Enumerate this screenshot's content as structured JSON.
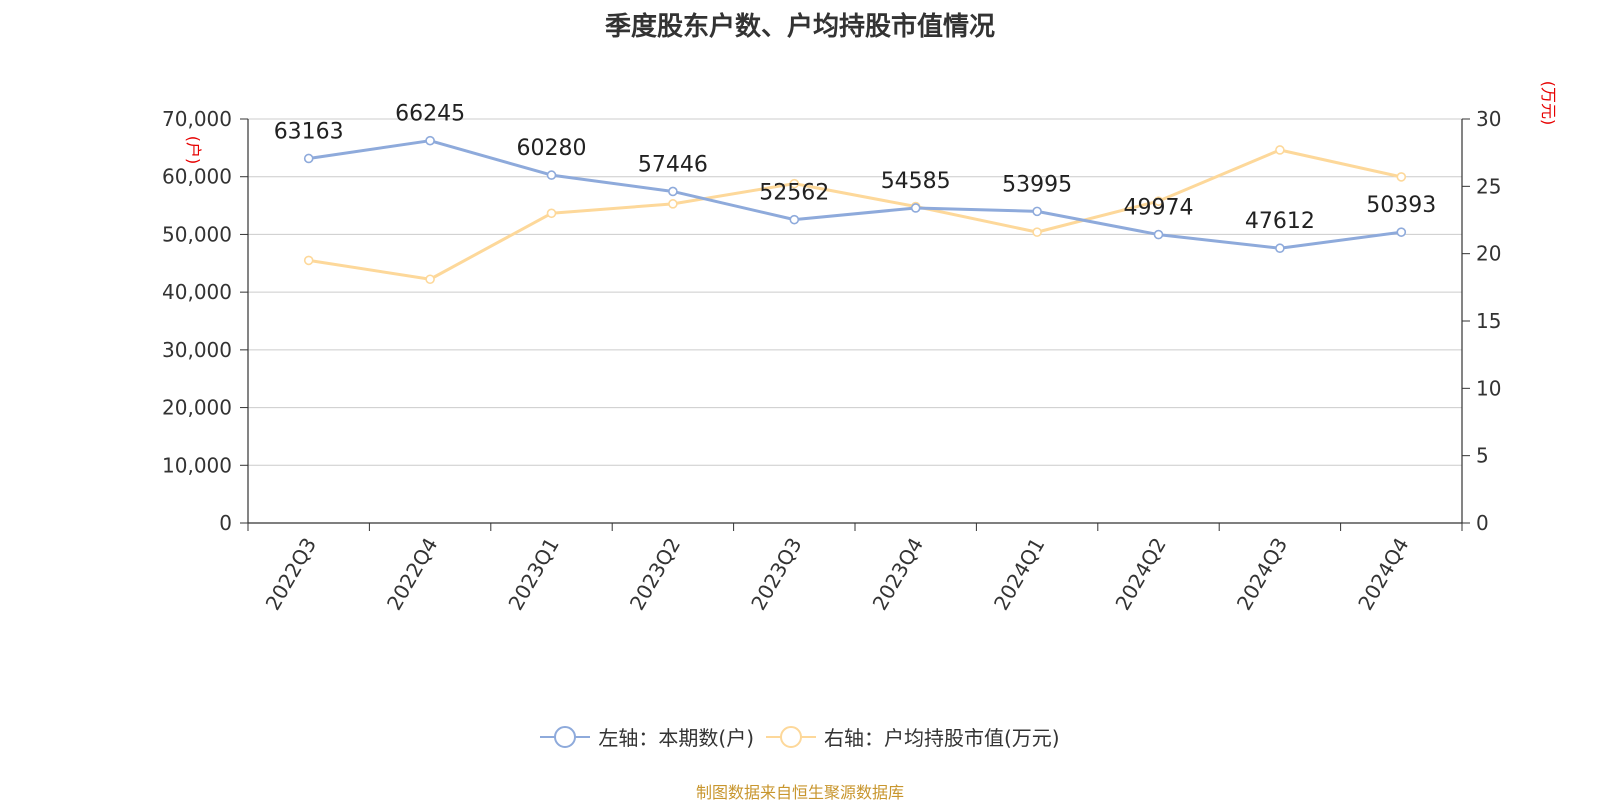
{
  "chart_data": {
    "type": "line",
    "title": "季度股东户数、户均持股市值情况",
    "categories": [
      "2022Q3",
      "2022Q4",
      "2023Q1",
      "2023Q2",
      "2023Q3",
      "2023Q4",
      "2024Q1",
      "2024Q2",
      "2024Q3",
      "2024Q4"
    ],
    "y_left": {
      "label": "(户)",
      "range": [
        0,
        70000
      ],
      "ticks": [
        0,
        10000,
        20000,
        30000,
        40000,
        50000,
        60000,
        70000
      ],
      "tick_labels": [
        "0",
        "10,000",
        "20,000",
        "30,000",
        "40,000",
        "50,000",
        "60,000",
        "70,000"
      ]
    },
    "y_right": {
      "label": "(万元)",
      "range": [
        0,
        30
      ],
      "ticks": [
        0,
        5,
        10,
        15,
        20,
        25,
        30
      ],
      "tick_labels": [
        "0",
        "5",
        "10",
        "15",
        "20",
        "25",
        "30"
      ]
    },
    "series": [
      {
        "name": "左轴：本期数(户)",
        "axis": "left",
        "color": "#8eaadb",
        "values": [
          63163,
          66245,
          60280,
          57446,
          52562,
          54585,
          53995,
          49974,
          47612,
          50393
        ],
        "data_labels": [
          "63163",
          "66245",
          "60280",
          "57446",
          "52562",
          "54585",
          "53995",
          "49974",
          "47612",
          "50393"
        ]
      },
      {
        "name": "右轴：户均持股市值(万元)",
        "axis": "right",
        "color": "#fdd89a",
        "values": [
          19.5,
          18.1,
          23.0,
          23.7,
          25.2,
          23.5,
          21.6,
          23.9,
          27.7,
          25.7
        ]
      }
    ],
    "grid": true,
    "legend_position": "bottom-center"
  },
  "source_note": "制图数据来自恒生聚源数据库"
}
